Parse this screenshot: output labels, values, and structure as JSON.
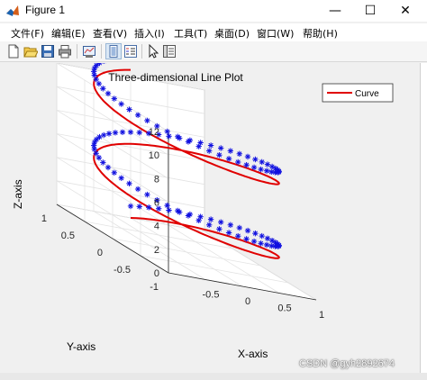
{
  "window": {
    "title": "Figure 1",
    "minimize_glyph": "—",
    "maximize_glyph": "☐",
    "close_glyph": "✕"
  },
  "menu": {
    "items": [
      {
        "label": "文件(F)"
      },
      {
        "label": "编辑(E)"
      },
      {
        "label": "查看(V)"
      },
      {
        "label": "插入(I)"
      },
      {
        "label": "工具(T)"
      },
      {
        "label": "桌面(D)"
      },
      {
        "label": "窗口(W)"
      },
      {
        "label": "帮助(H)"
      }
    ]
  },
  "toolbar": {
    "icons": [
      "new-figure-icon",
      "open-file-icon",
      "save-icon",
      "print-icon",
      "link-plot-icon",
      "data-cursor-icon",
      "insert-legend-icon",
      "edit-plot-arrow-icon",
      "property-inspector-icon"
    ]
  },
  "chart_data": {
    "type": "line",
    "projection": "3d",
    "title": "Three-dimensional Line Plot",
    "xlabel": "X-axis",
    "ylabel": "Y-axis",
    "zlabel": "Z-axis",
    "xlim": [
      -1,
      1
    ],
    "ylim": [
      -1,
      1
    ],
    "zlim": [
      0,
      12
    ],
    "xticks": [
      "-0.5",
      "0",
      "0.5",
      "1"
    ],
    "yticks": [
      "-1",
      "-0.5",
      "0",
      "0.5",
      "1"
    ],
    "zticks": [
      "0",
      "2",
      "4",
      "6",
      "8",
      "10",
      "12"
    ],
    "grid": true,
    "legend_position": "top-right",
    "series": [
      {
        "name": "Curve",
        "color": "#e00000",
        "marker": "none",
        "equation": "x = sin(t), y = cos(t), z = t",
        "t_range": [
          0,
          12.566
        ]
      },
      {
        "name": "",
        "color": "#1010e0",
        "marker": "*",
        "equation": "x = sin(t), y = cos(t), z = t + 1",
        "t_range": [
          0,
          12.566
        ]
      }
    ]
  },
  "watermark": "CSDN @gyh2892674"
}
